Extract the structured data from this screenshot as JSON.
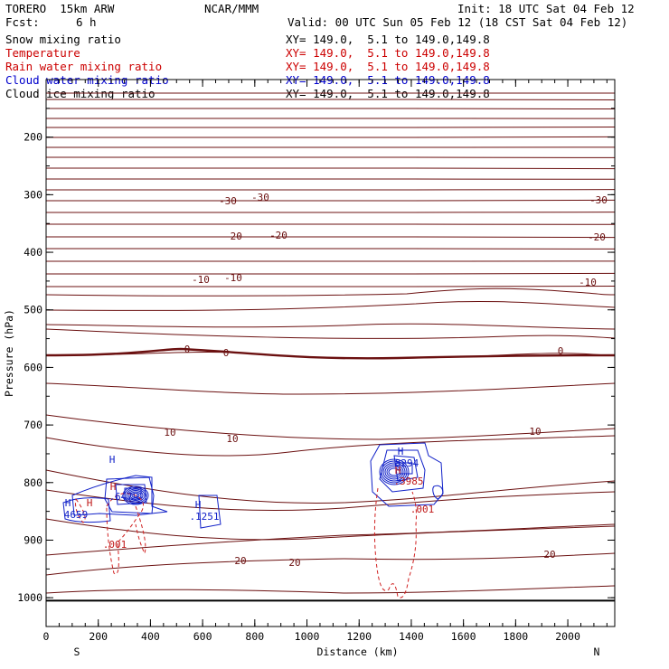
{
  "header": {
    "model": "TORERO  15km ARW",
    "center": "NCAR/MMM",
    "init": "Init: 18 UTC Sat 04 Feb 12",
    "fcst_label": "Fcst:",
    "fcst_value": "6 h",
    "valid": "Valid: 00 UTC Sun 05 Feb 12 (18 CST Sat 04 Feb 12)"
  },
  "fields": [
    {
      "name": "Snow mixing ratio",
      "xy": "XY= 149.0,  5.1 to 149.0,149.8",
      "color": "#000000"
    },
    {
      "name": "Temperature",
      "xy": "XY= 149.0,  5.1 to 149.0,149.8",
      "color": "#cc0000"
    },
    {
      "name": "Rain water mixing ratio",
      "xy": "XY= 149.0,  5.1 to 149.0,149.8",
      "color": "#cc0000"
    },
    {
      "name": "Cloud water mixing ratio",
      "xy": "XY= 149.0,  5.1 to 149.0,149.8",
      "color": "#0000cc"
    },
    {
      "name": "Cloud ice mixing ratio",
      "xy": "XY= 149.0,  5.1 to 149.0,149.8",
      "color": "#000000"
    }
  ],
  "chart_data": {
    "type": "contour-cross-section",
    "xlabel": "Distance (km)",
    "ylabel": "Pressure (hPa)",
    "xlim": [
      0,
      2180
    ],
    "ylim": [
      1050,
      100
    ],
    "x_ticks": [
      0,
      200,
      400,
      600,
      800,
      1000,
      1200,
      1400,
      1600,
      1800,
      2000
    ],
    "y_ticks": [
      200,
      300,
      400,
      500,
      600,
      700,
      800,
      900,
      1000
    ],
    "left_end_label": "S",
    "right_end_label": "N",
    "temperature_contours": [
      {
        "level": -30,
        "labels": [
          "-30",
          "-30",
          "-30"
        ]
      },
      {
        "level": -20,
        "labels": [
          "-20",
          "-20",
          "-20"
        ]
      },
      {
        "level": -10,
        "labels": [
          "-10",
          "-10",
          "-10"
        ]
      },
      {
        "level": 0,
        "labels": [
          "0",
          "0",
          "0"
        ]
      },
      {
        "level": 10,
        "labels": [
          "10",
          "10",
          "10"
        ]
      },
      {
        "level": 20,
        "labels": [
          "20",
          "20",
          "20"
        ]
      }
    ],
    "cloud_water_labels": [
      "H",
      ".6479",
      "4659",
      "H",
      ".1251",
      "H",
      "8294"
    ],
    "rain_labels": [
      "H",
      "H",
      "H",
      ".001",
      ".3985",
      ".001"
    ],
    "surface_pressure_hpa": 1005
  }
}
